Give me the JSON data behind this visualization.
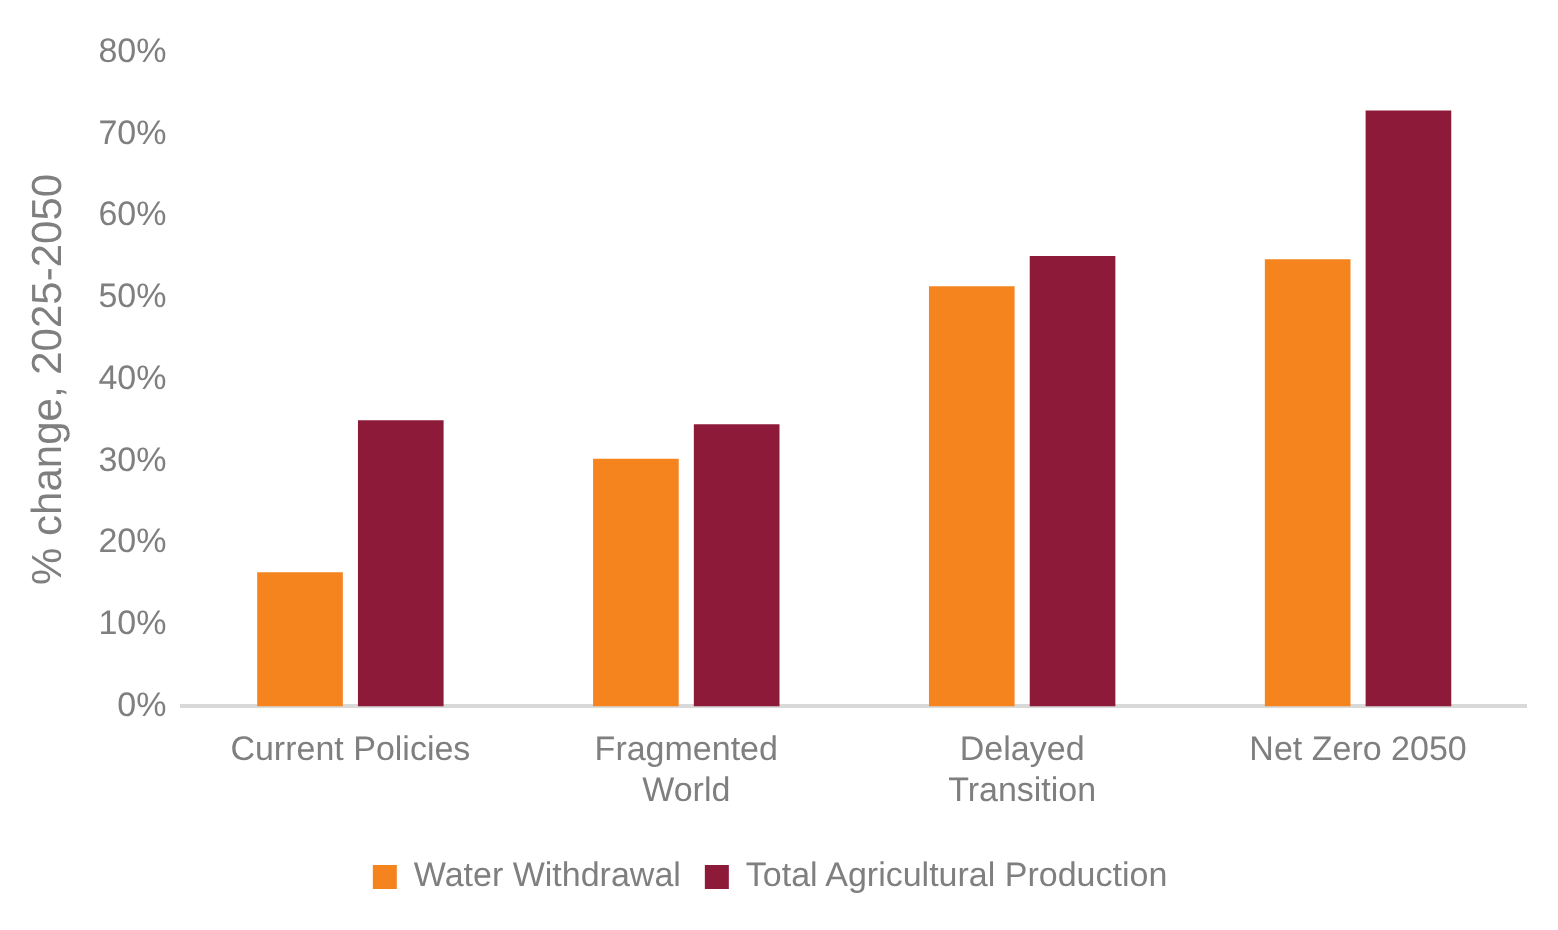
{
  "chart_data": {
    "type": "bar",
    "ylabel": "% change, 2025-2050",
    "categories": [
      "Current Policies",
      "Fragmented World",
      "Delayed Transition",
      "Net Zero 2050"
    ],
    "series": [
      {
        "name": "Water Withdrawal",
        "color": "#f5841f",
        "values": [
          16.4,
          30.3,
          51.4,
          54.7
        ]
      },
      {
        "name": "Total Agricultural Production",
        "color": "#8e1a3a",
        "values": [
          35.0,
          34.5,
          55.1,
          72.9
        ]
      }
    ],
    "ylim": [
      0,
      80
    ],
    "yticks": [
      {
        "value": 0,
        "label": "0%"
      },
      {
        "value": 10,
        "label": "10%"
      },
      {
        "value": 20,
        "label": "20%"
      },
      {
        "value": 30,
        "label": "30%"
      },
      {
        "value": 40,
        "label": "40%"
      },
      {
        "value": 50,
        "label": "50%"
      },
      {
        "value": 60,
        "label": "60%"
      },
      {
        "value": 70,
        "label": "70%"
      },
      {
        "value": 80,
        "label": "80%"
      }
    ],
    "grid": false,
    "legend": "bottom"
  }
}
